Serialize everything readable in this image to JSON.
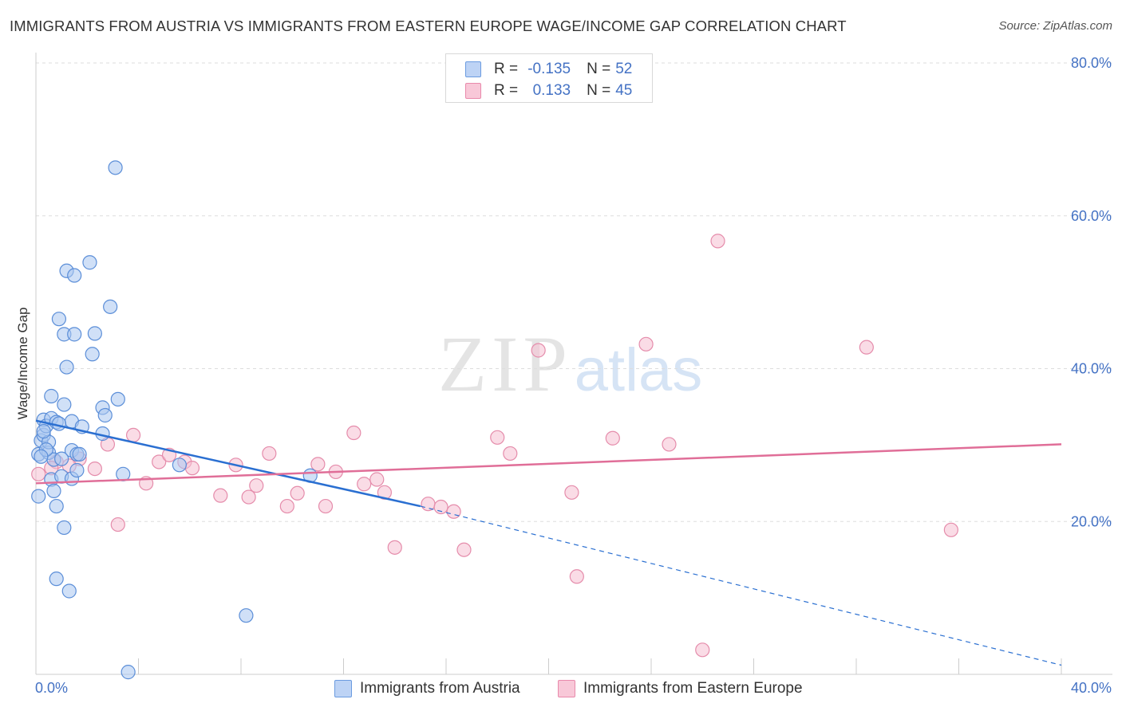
{
  "header": {
    "title": "IMMIGRANTS FROM AUSTRIA VS IMMIGRANTS FROM EASTERN EUROPE WAGE/INCOME GAP CORRELATION CHART",
    "source": "Source: ZipAtlas.com"
  },
  "watermark": {
    "zip": "ZIP",
    "atlas": "atlas"
  },
  "legend": {
    "r_label": "R =",
    "n_label": "N =",
    "rows": [
      {
        "name": "Immigrants from Austria",
        "r": "-0.135",
        "n": "52",
        "fill": "#bdd3f5",
        "stroke": "#6b9be0"
      },
      {
        "name": "Immigrants from Eastern Europe",
        "r": "0.133",
        "n": "45",
        "fill": "#f8c8d8",
        "stroke": "#e989ab"
      }
    ]
  },
  "colors": {
    "austria_fill": "#a9c6f0",
    "austria_stroke": "#5b8ed8",
    "austria_line": "#2a6fd1",
    "eeurope_fill": "#f6bfd2",
    "eeurope_stroke": "#e58cab",
    "eeurope_line": "#e06e98",
    "axis_label": "#4472c4",
    "grid": "#dddddd"
  },
  "chart_data": {
    "type": "scatter",
    "title": "IMMIGRANTS FROM AUSTRIA VS IMMIGRANTS FROM EASTERN EUROPE WAGE/INCOME GAP CORRELATION CHART",
    "xlabel": "",
    "ylabel": "Wage/Income Gap",
    "xlim": [
      0,
      40
    ],
    "ylim": [
      0,
      80
    ],
    "x_tick_labels": [
      "0.0%",
      "40.0%"
    ],
    "y_ticks": [
      20,
      40,
      60,
      80
    ],
    "y_tick_labels": [
      "20.0%",
      "40.0%",
      "60.0%",
      "80.0%"
    ],
    "grid": true,
    "legend_position": "top-center",
    "series": [
      {
        "name": "Immigrants from Austria",
        "r": -0.135,
        "n": 52,
        "trend": {
          "x0": 0,
          "y0": 33.2,
          "x1": 15.0,
          "y1": 22.0,
          "dashed_to_x": 40,
          "dashed_to_y": 1.2
        },
        "points": [
          [
            0.1,
            23.3
          ],
          [
            0.1,
            28.8
          ],
          [
            0.2,
            30.6
          ],
          [
            0.3,
            31.3
          ],
          [
            0.3,
            33.3
          ],
          [
            0.4,
            32.5
          ],
          [
            0.5,
            29.0
          ],
          [
            0.5,
            30.4
          ],
          [
            0.6,
            33.5
          ],
          [
            0.6,
            36.4
          ],
          [
            0.6,
            25.5
          ],
          [
            0.7,
            24.0
          ],
          [
            0.7,
            28.1
          ],
          [
            0.8,
            22.0
          ],
          [
            0.8,
            12.5
          ],
          [
            0.8,
            33.0
          ],
          [
            0.9,
            46.5
          ],
          [
            1.0,
            25.9
          ],
          [
            1.1,
            19.2
          ],
          [
            1.1,
            44.5
          ],
          [
            1.1,
            35.3
          ],
          [
            1.2,
            40.2
          ],
          [
            1.2,
            52.8
          ],
          [
            1.3,
            10.9
          ],
          [
            1.4,
            29.3
          ],
          [
            1.4,
            33.1
          ],
          [
            1.4,
            25.6
          ],
          [
            1.5,
            44.5
          ],
          [
            1.5,
            52.2
          ],
          [
            1.6,
            28.8
          ],
          [
            1.6,
            26.7
          ],
          [
            1.7,
            28.8
          ],
          [
            1.8,
            32.4
          ],
          [
            2.1,
            53.9
          ],
          [
            2.2,
            41.9
          ],
          [
            2.3,
            44.6
          ],
          [
            2.6,
            31.5
          ],
          [
            2.6,
            34.9
          ],
          [
            2.7,
            33.9
          ],
          [
            2.9,
            48.1
          ],
          [
            3.1,
            66.3
          ],
          [
            3.2,
            36.0
          ],
          [
            3.4,
            26.2
          ],
          [
            3.6,
            0.3
          ],
          [
            5.6,
            27.4
          ],
          [
            8.2,
            7.7
          ],
          [
            10.7,
            26.0
          ],
          [
            0.3,
            31.8
          ],
          [
            0.4,
            29.4
          ],
          [
            0.9,
            32.8
          ],
          [
            0.2,
            28.5
          ],
          [
            1.0,
            28.2
          ]
        ]
      },
      {
        "name": "Immigrants from Eastern Europe",
        "r": 0.133,
        "n": 45,
        "trend": {
          "x0": 0,
          "y0": 25.0,
          "x1": 40,
          "y1": 30.1
        },
        "points": [
          [
            0.1,
            26.2
          ],
          [
            0.8,
            27.8
          ],
          [
            1.7,
            28.2
          ],
          [
            2.3,
            26.9
          ],
          [
            2.8,
            30.1
          ],
          [
            3.2,
            19.6
          ],
          [
            3.8,
            31.3
          ],
          [
            4.3,
            25.0
          ],
          [
            4.8,
            27.8
          ],
          [
            5.2,
            28.7
          ],
          [
            5.8,
            27.8
          ],
          [
            6.1,
            27.0
          ],
          [
            7.2,
            23.4
          ],
          [
            7.8,
            27.4
          ],
          [
            8.3,
            23.2
          ],
          [
            8.6,
            24.7
          ],
          [
            9.1,
            28.9
          ],
          [
            9.8,
            22.0
          ],
          [
            10.2,
            23.7
          ],
          [
            11.0,
            27.5
          ],
          [
            11.3,
            22.0
          ],
          [
            11.7,
            26.5
          ],
          [
            12.4,
            31.6
          ],
          [
            12.8,
            24.9
          ],
          [
            13.3,
            25.5
          ],
          [
            13.6,
            23.8
          ],
          [
            14.0,
            16.6
          ],
          [
            15.3,
            22.3
          ],
          [
            15.8,
            21.9
          ],
          [
            16.3,
            21.3
          ],
          [
            16.7,
            16.3
          ],
          [
            18.0,
            31.0
          ],
          [
            18.5,
            28.9
          ],
          [
            19.6,
            42.4
          ],
          [
            20.9,
            23.8
          ],
          [
            21.1,
            12.8
          ],
          [
            22.5,
            30.9
          ],
          [
            23.8,
            43.2
          ],
          [
            24.7,
            30.1
          ],
          [
            26.0,
            3.2
          ],
          [
            26.6,
            56.7
          ],
          [
            32.4,
            42.8
          ],
          [
            35.7,
            18.9
          ],
          [
            1.3,
            27.3
          ],
          [
            0.6,
            27.0
          ]
        ]
      }
    ]
  }
}
